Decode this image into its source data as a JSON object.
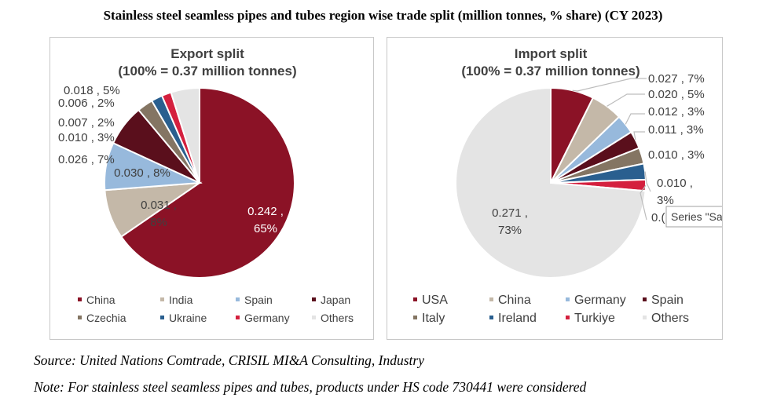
{
  "title": "Stainless steel seamless pipes and tubes region wise trade split (million tonnes, % share) (CY 2023)",
  "source": "Source: United Nations Comtrade, CRISIL MI&A Consulting, Industry",
  "note": "Note: For stainless steel seamless pipes and tubes, products under HS code 730441 were considered",
  "tooltip": "Series \"Sal",
  "chart_data": [
    {
      "type": "pie",
      "title": "Export split",
      "subtitle": "(100% = 0.37 million tonnes)",
      "legend_position": "bottom",
      "slices": [
        {
          "name": "China",
          "value": 0.242,
          "share": "65%",
          "label": "0.242 ,\n65%",
          "color": "#8b1226"
        },
        {
          "name": "India",
          "value": 0.031,
          "share": "8%",
          "label": "0.031 ,\n8%",
          "color": "#c4b8a8"
        },
        {
          "name": "Spain",
          "value": 0.03,
          "share": "8%",
          "label": "0.030 , 8%",
          "color": "#97b9dc"
        },
        {
          "name": "Japan",
          "value": 0.026,
          "share": "7%",
          "label": "0.026 , 7%",
          "color": "#5a0f1c"
        },
        {
          "name": "Czechia",
          "value": 0.01,
          "share": "3%",
          "label": "0.010 , 3%",
          "color": "#847563"
        },
        {
          "name": "Ukraine",
          "value": 0.007,
          "share": "2%",
          "label": "0.007 , 2%",
          "color": "#2a5f8f"
        },
        {
          "name": "Germany",
          "value": 0.006,
          "share": "2%",
          "label": "0.006 , 2%",
          "color": "#d4203e"
        },
        {
          "name": "Others",
          "value": 0.018,
          "share": "5%",
          "label": "0.018 , 5%",
          "color": "#e4e4e4"
        }
      ]
    },
    {
      "type": "pie",
      "title": "Import split",
      "subtitle": "(100% = 0.37 million tonnes)",
      "legend_position": "bottom",
      "slices": [
        {
          "name": "USA",
          "value": 0.027,
          "share": "7%",
          "label": "0.027 , 7%",
          "color": "#8b1226"
        },
        {
          "name": "China",
          "value": 0.02,
          "share": "5%",
          "label": "0.020 , 5%",
          "color": "#c4b8a8"
        },
        {
          "name": "Germany",
          "value": 0.012,
          "share": "3%",
          "label": "0.012 , 3%",
          "color": "#97b9dc"
        },
        {
          "name": "Spain",
          "value": 0.011,
          "share": "3%",
          "label": "0.011 , 3%",
          "color": "#5a0f1c"
        },
        {
          "name": "Italy",
          "value": 0.01,
          "share": "3%",
          "label": "0.010 , 3%",
          "color": "#847563"
        },
        {
          "name": "Ireland",
          "value": 0.01,
          "share": "3%",
          "label": "0.010 ,\n3%",
          "color": "#2a5f8f"
        },
        {
          "name": "Turkiye",
          "value": null,
          "share": null,
          "label": "0.(",
          "color": "#d4203e"
        },
        {
          "name": "Others",
          "value": 0.271,
          "share": "73%",
          "label": "0.271 ,\n73%",
          "color": "#e4e4e4"
        }
      ]
    }
  ]
}
